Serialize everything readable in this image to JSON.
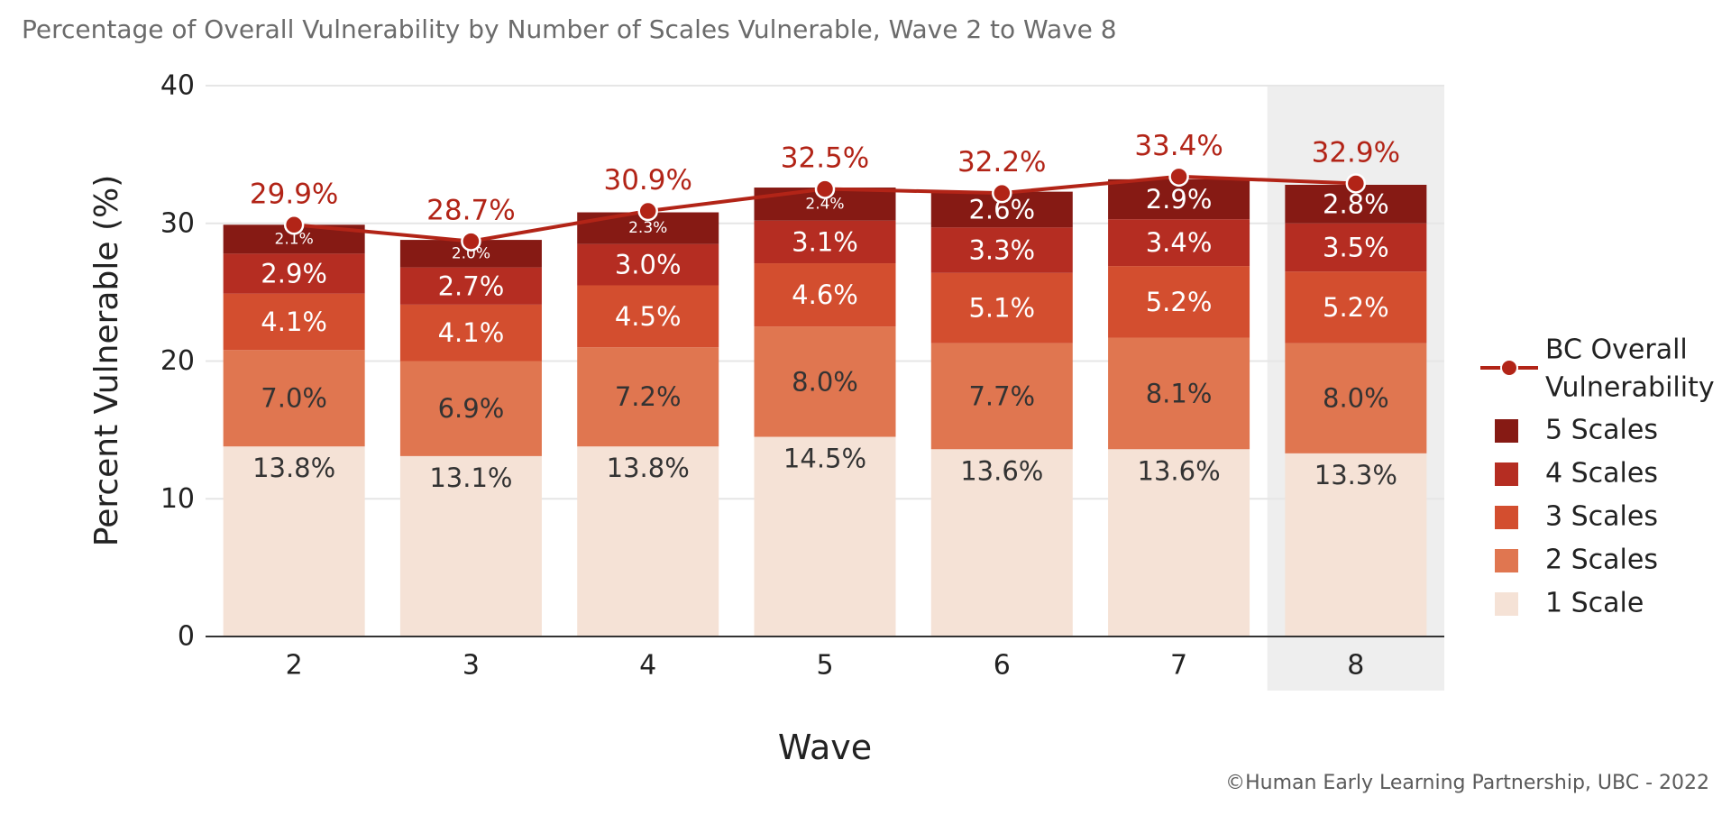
{
  "title": "Percentage of Overall Vulnerability by Number of Scales Vulnerable, Wave 2 to Wave 8",
  "credit": "©Human Early Learning Partnership, UBC - 2022",
  "chart_data": {
    "type": "bar",
    "stacked": true,
    "xlabel": "Wave",
    "ylabel": "Percent Vulnerable (%)",
    "ylim": [
      0,
      40
    ],
    "yticks": [
      0,
      10,
      20,
      30,
      40
    ],
    "categories": [
      "2",
      "3",
      "4",
      "5",
      "6",
      "7",
      "8"
    ],
    "highlighted_category": "8",
    "series": [
      {
        "name": "1 Scale",
        "color": "#f5e2d6",
        "label_color": "#333333",
        "values": [
          13.8,
          13.1,
          13.8,
          14.5,
          13.6,
          13.6,
          13.3
        ],
        "labels": [
          "13.8%",
          "13.1%",
          "13.8%",
          "14.5%",
          "13.6%",
          "13.6%",
          "13.3%"
        ]
      },
      {
        "name": "2 Scales",
        "color": "#e07650",
        "label_color": "#333333",
        "values": [
          7.0,
          6.9,
          7.2,
          8.0,
          7.7,
          8.1,
          8.0
        ],
        "labels": [
          "7.0%",
          "6.9%",
          "7.2%",
          "8.0%",
          "7.7%",
          "8.1%",
          "8.0%"
        ]
      },
      {
        "name": "3 Scales",
        "color": "#d34e2f",
        "label_color": "#ffffff",
        "values": [
          4.1,
          4.1,
          4.5,
          4.6,
          5.1,
          5.2,
          5.2
        ],
        "labels": [
          "4.1%",
          "4.1%",
          "4.5%",
          "4.6%",
          "5.1%",
          "5.2%",
          "5.2%"
        ]
      },
      {
        "name": "4 Scales",
        "color": "#b52d22",
        "label_color": "#ffffff",
        "values": [
          2.9,
          2.7,
          3.0,
          3.1,
          3.3,
          3.4,
          3.5
        ],
        "labels": [
          "2.9%",
          "2.7%",
          "3.0%",
          "3.1%",
          "3.3%",
          "3.4%",
          "3.5%"
        ]
      },
      {
        "name": "5 Scales",
        "color": "#861a14",
        "label_color": "#ffffff",
        "values": [
          2.1,
          2.0,
          2.3,
          2.4,
          2.6,
          2.9,
          2.8
        ],
        "labels": [
          "2.1%",
          "2.0%",
          "2.3%",
          "2.4%",
          "2.6%",
          "2.9%",
          "2.8%"
        ]
      }
    ],
    "line": {
      "name": "BC Overall Vulnerability",
      "color": "#b22417",
      "values": [
        29.9,
        28.7,
        30.9,
        32.5,
        32.2,
        33.4,
        32.9
      ],
      "labels": [
        "29.9%",
        "28.7%",
        "30.9%",
        "32.5%",
        "32.2%",
        "33.4%",
        "32.9%"
      ]
    },
    "legend": {
      "position": "right",
      "line_label": [
        "BC Overall",
        "Vulnerability"
      ],
      "order": [
        "5 Scales",
        "4 Scales",
        "3 Scales",
        "2 Scales",
        "1 Scale"
      ]
    },
    "grid": true
  }
}
